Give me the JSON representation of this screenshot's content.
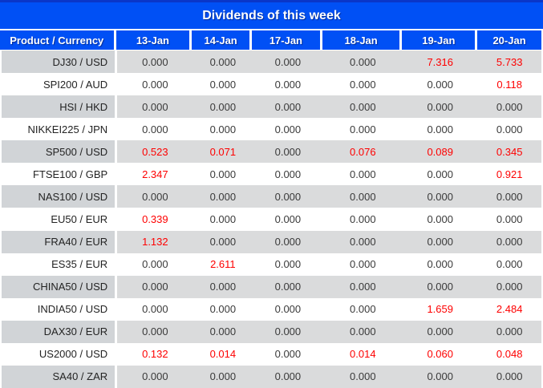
{
  "title": "Dividends of this week",
  "columns": [
    "Product / Currency",
    "13-Jan",
    "14-Jan",
    "17-Jan",
    "18-Jan",
    "19-Jan",
    "20-Jan"
  ],
  "rows": [
    {
      "label": "DJ30 / USD",
      "values": [
        "0.000",
        "0.000",
        "0.000",
        "0.000",
        "7.316",
        "5.733"
      ]
    },
    {
      "label": "SPI200 / AUD",
      "values": [
        "0.000",
        "0.000",
        "0.000",
        "0.000",
        "0.000",
        "0.118"
      ]
    },
    {
      "label": "HSI / HKD",
      "values": [
        "0.000",
        "0.000",
        "0.000",
        "0.000",
        "0.000",
        "0.000"
      ]
    },
    {
      "label": "NIKKEI225 / JPN",
      "values": [
        "0.000",
        "0.000",
        "0.000",
        "0.000",
        "0.000",
        "0.000"
      ]
    },
    {
      "label": "SP500 / USD",
      "values": [
        "0.523",
        "0.071",
        "0.000",
        "0.076",
        "0.089",
        "0.345"
      ]
    },
    {
      "label": "FTSE100 / GBP",
      "values": [
        "2.347",
        "0.000",
        "0.000",
        "0.000",
        "0.000",
        "0.921"
      ]
    },
    {
      "label": "NAS100 / USD",
      "values": [
        "0.000",
        "0.000",
        "0.000",
        "0.000",
        "0.000",
        "0.000"
      ]
    },
    {
      "label": "EU50 / EUR",
      "values": [
        "0.339",
        "0.000",
        "0.000",
        "0.000",
        "0.000",
        "0.000"
      ]
    },
    {
      "label": "FRA40 / EUR",
      "values": [
        "1.132",
        "0.000",
        "0.000",
        "0.000",
        "0.000",
        "0.000"
      ]
    },
    {
      "label": "ES35 / EUR",
      "values": [
        "0.000",
        "2.611",
        "0.000",
        "0.000",
        "0.000",
        "0.000"
      ]
    },
    {
      "label": "CHINA50 / USD",
      "values": [
        "0.000",
        "0.000",
        "0.000",
        "0.000",
        "0.000",
        "0.000"
      ]
    },
    {
      "label": "INDIA50 / USD",
      "values": [
        "0.000",
        "0.000",
        "0.000",
        "0.000",
        "1.659",
        "2.484"
      ]
    },
    {
      "label": "DAX30 / EUR",
      "values": [
        "0.000",
        "0.000",
        "0.000",
        "0.000",
        "0.000",
        "0.000"
      ]
    },
    {
      "label": "US2000 / USD",
      "values": [
        "0.132",
        "0.014",
        "0.000",
        "0.014",
        "0.060",
        "0.048"
      ]
    },
    {
      "label": "SA40 / ZAR",
      "values": [
        "0.000",
        "0.000",
        "0.000",
        "0.000",
        "0.000",
        "0.000"
      ]
    }
  ],
  "colors": {
    "header_blue": "#0050f5",
    "header_top_line": "#0a36c8",
    "nonzero_value_red": "#fe0000",
    "zero_value_black": "#3a3a3a",
    "alt_row_gray_label": "#d1d4d7",
    "alt_row_gray_data": "#dadbdc"
  }
}
